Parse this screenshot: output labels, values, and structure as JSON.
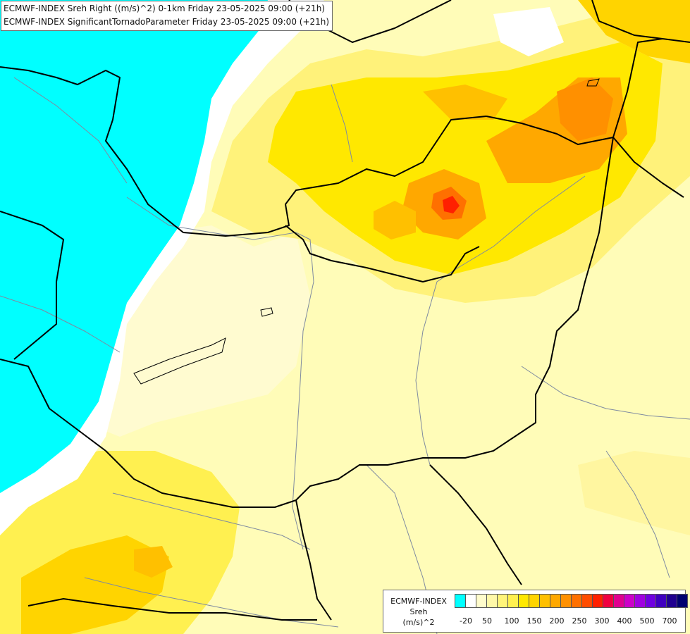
{
  "header": {
    "line1": "ECMWF-INDEX Sreh Right ((m/s)^2) 0-1km Friday 23-05-2025 09:00 (+21h)",
    "line2": "ECMWF-INDEX SignificantTornadoParameter Friday 23-05-2025 09:00 (+21h)"
  },
  "legend": {
    "model": "ECMWF-INDEX",
    "parameter": "Sreh",
    "unit": "(m/s)^2",
    "swatch_colors": [
      "#00ffff",
      "#ffffff",
      "#fffccc",
      "#fff8a8",
      "#fff47a",
      "#fff050",
      "#ffe800",
      "#ffd400",
      "#ffc000",
      "#ffa800",
      "#ff9000",
      "#ff7000",
      "#ff4c00",
      "#ff2000",
      "#f00040",
      "#e00090",
      "#cc00c8",
      "#a000e0",
      "#7000e0",
      "#4000c0",
      "#200090",
      "#000070"
    ],
    "ticks": [
      "-20",
      "50",
      "100",
      "150",
      "200",
      "250",
      "300",
      "400",
      "500",
      "700"
    ]
  },
  "colors": {
    "negative_region": "#00ffff",
    "background_low": "#fffcb8",
    "border_lines": "#000000",
    "river_lines": "#7f8aa0"
  }
}
